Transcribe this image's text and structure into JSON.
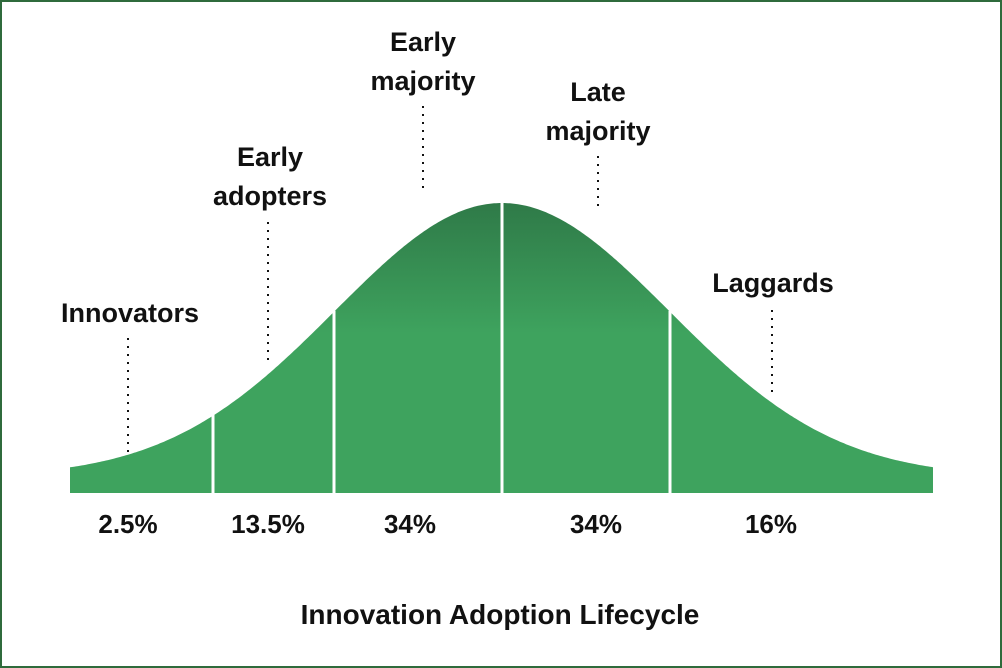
{
  "chart_data": {
    "type": "area",
    "title": "Innovation Adoption Lifecycle",
    "xlabel": "",
    "ylabel": "",
    "grid": false,
    "legend": "none",
    "segments": [
      {
        "label": "Innovators",
        "label_lines": [
          "Innovators"
        ],
        "value": "2.5%"
      },
      {
        "label": "Early adopters",
        "label_lines": [
          "Early",
          "adopters"
        ],
        "value": "13.5%"
      },
      {
        "label": "Early majority",
        "label_lines": [
          "Early",
          "majority"
        ],
        "value": "34%"
      },
      {
        "label": "Late majority",
        "label_lines": [
          "Late",
          "majority"
        ],
        "value": "34%"
      },
      {
        "label": "Laggards",
        "label_lines": [
          "Laggards"
        ],
        "value": "16%"
      }
    ],
    "colors": {
      "fill_light": "#3ea35e",
      "fill_dark": "#2f7a48",
      "divider": "#ffffff",
      "border": "#2f6b3c",
      "text": "#111111"
    }
  }
}
